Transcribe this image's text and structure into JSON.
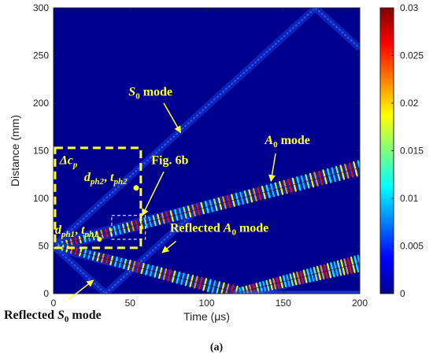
{
  "chart_data": {
    "type": "heatmap",
    "xlabel": "Time (μs)",
    "ylabel": "Distance (mm)",
    "xlim": [
      0,
      200
    ],
    "ylim": [
      0,
      300
    ],
    "x_ticks": [
      "0",
      "50",
      "100",
      "150",
      "200"
    ],
    "y_ticks": [
      "0",
      "50",
      "100",
      "150",
      "200",
      "250",
      "300"
    ],
    "colorbar": {
      "min": 0,
      "max": 0.03,
      "ticks": [
        "0",
        "0.005",
        "0.01",
        "0.015",
        "0.02",
        "0.025",
        "0.03"
      ],
      "colormap": "jet"
    },
    "source_position_mm": 50,
    "series": [
      {
        "name": "S0 mode",
        "x": [
          0,
          171
        ],
        "y": [
          50,
          300
        ]
      },
      {
        "name": "A0 mode",
        "x": [
          0,
          200
        ],
        "y": [
          50,
          132
        ]
      },
      {
        "name": "Reflected A0 mode",
        "x": [
          0,
          122
        ],
        "y": [
          50,
          0
        ]
      },
      {
        "name": "Reflected S0 mode",
        "x": [
          0,
          34
        ],
        "y": [
          50,
          0
        ]
      }
    ],
    "annotations": {
      "s0_mode": {
        "prefix": "S",
        "sub": "0",
        "suffix": " mode"
      },
      "a0_mode": {
        "prefix": "A",
        "sub": "0",
        "suffix": " mode"
      },
      "fig6b": "Fig. 6b",
      "reflected_a0": {
        "prefix": "Reflected ",
        "main": "A",
        "sub": "0",
        "suffix": " mode"
      },
      "reflected_s0": {
        "prefix": "Reflected ",
        "main": "S",
        "sub": "0",
        "suffix": " mode"
      },
      "delta_cp": {
        "main": "Δc",
        "sub": "p"
      },
      "point1": {
        "d": "d",
        "d_sub": "ph1",
        "t": "t",
        "t_sub": "ph1"
      },
      "point2": {
        "d": "d",
        "d_sub": "ph2",
        "t": "t",
        "t_sub": "ph2"
      }
    }
  },
  "caption": "(a)",
  "colors": {
    "background": "#00008f",
    "guided_wave_band": "#0f2ecf",
    "annotation": "#ffff33"
  }
}
